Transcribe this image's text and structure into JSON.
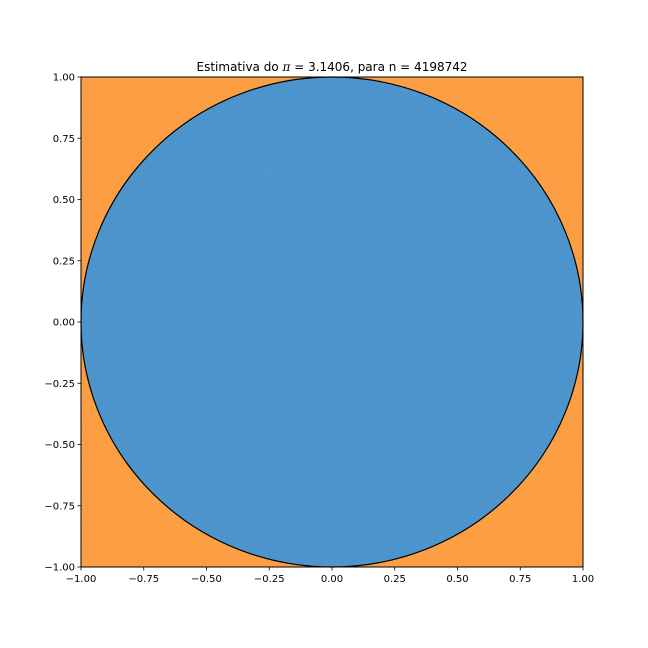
{
  "chart_data": {
    "type": "scatter",
    "title": "Estimativa do π = 3.1406, para n = 4198742",
    "title_prefix": "Estimativa do ",
    "title_symbol": "π",
    "title_suffix": " = 3.1406, para n = 4198742",
    "pi_estimate": 3.1406,
    "n": 4198742,
    "xlabel": "",
    "ylabel": "",
    "xlim": [
      -1.0,
      1.0
    ],
    "ylim": [
      -1.0,
      1.0
    ],
    "xticks": [
      -1.0,
      -0.75,
      -0.5,
      -0.25,
      0.0,
      0.25,
      0.5,
      0.75,
      1.0
    ],
    "yticks": [
      -1.0,
      -0.75,
      -0.5,
      -0.25,
      0.0,
      0.25,
      0.5,
      0.75,
      1.0
    ],
    "xtick_labels": [
      "−1.00",
      "−0.75",
      "−0.50",
      "−0.25",
      "0.00",
      "0.25",
      "0.50",
      "0.75",
      "1.00"
    ],
    "ytick_labels": [
      "−1.00",
      "−0.75",
      "−0.50",
      "−0.25",
      "0.00",
      "0.25",
      "0.50",
      "0.75",
      "1.00"
    ],
    "grid": false,
    "legend": false,
    "circle": {
      "center": [
        0,
        0
      ],
      "radius": 1,
      "edge_color": "#000000"
    },
    "series": [
      {
        "region": "inside unit circle",
        "color": "#4b93cc",
        "speckle_color": "#2f6fa5"
      },
      {
        "region": "outside unit circle",
        "color": "#fd9d42",
        "speckle_color": "#e4781c"
      }
    ]
  }
}
